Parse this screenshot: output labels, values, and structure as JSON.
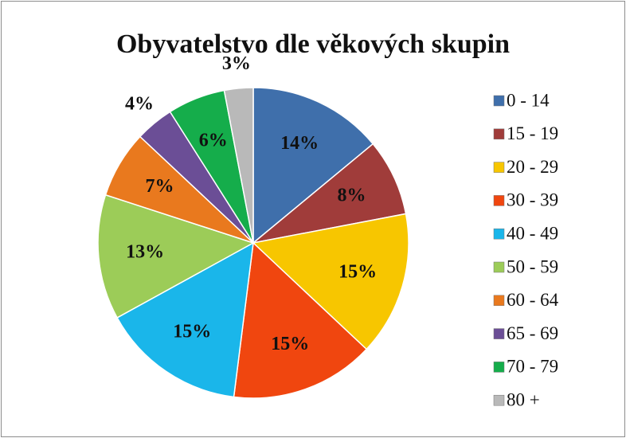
{
  "chart_data": {
    "type": "pie",
    "title": "Obyvatelstvo dle věkových skupin",
    "categories": [
      "0 - 14",
      "15 - 19",
      "20 - 29",
      "30 - 39",
      "40 - 49",
      "50 - 59",
      "60 - 64",
      "65 - 69",
      "70 - 79",
      "80 +"
    ],
    "values": [
      14,
      8,
      15,
      15,
      15,
      13,
      7,
      4,
      6,
      3
    ],
    "value_labels": [
      "14%",
      "8%",
      "15%",
      "15%",
      "15%",
      "13%",
      "7%",
      "4%",
      "6%",
      "3%"
    ],
    "colors": [
      "#3f6fab",
      "#a03c3a",
      "#f7c600",
      "#f0460f",
      "#1ab6ea",
      "#9ccc58",
      "#e9791e",
      "#6b4e96",
      "#15ad4b",
      "#b9b9b9"
    ],
    "legend": "right"
  }
}
